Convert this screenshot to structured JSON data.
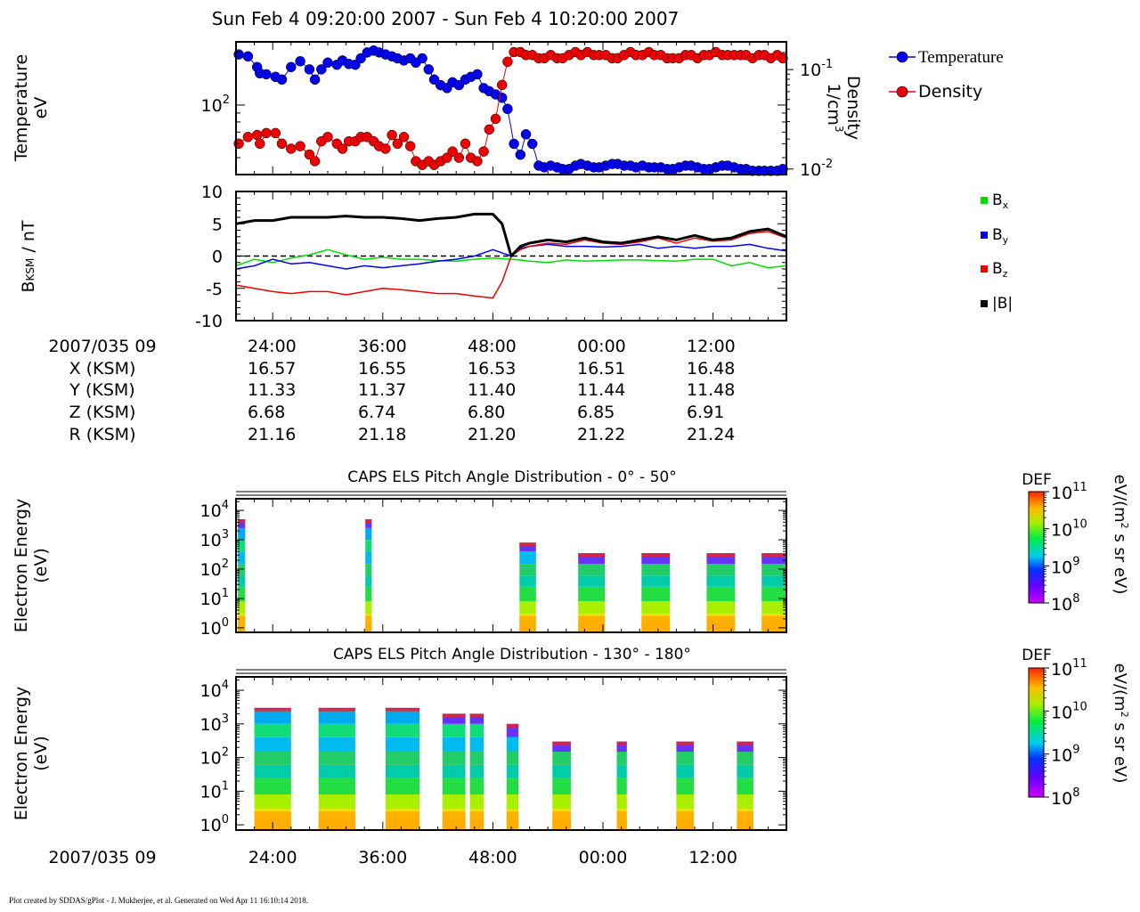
{
  "page": {
    "title": "Sun Feb 4 09:20:00 2007 - Sun Feb 4 10:20:00 2007",
    "footer": "Plot created by SDDAS/gPlot - J. Mukherjee, et al.  Generated on Wed Apr 11 16:10:14 2018."
  },
  "ephemeris": {
    "labels": [
      "2007/035 09",
      "X (KSM)",
      "Y (KSM)",
      "Z (KSM)",
      "R (KSM)"
    ],
    "columns": [
      {
        "time": "24:00",
        "x": "16.57",
        "y": "11.33",
        "z": "6.68",
        "r": "21.16"
      },
      {
        "time": "36:00",
        "x": "16.55",
        "y": "11.37",
        "z": "6.74",
        "r": "21.18"
      },
      {
        "time": "48:00",
        "x": "16.53",
        "y": "11.40",
        "z": "6.80",
        "r": "21.20"
      },
      {
        "time": "00:00",
        "x": "16.51",
        "y": "11.44",
        "z": "6.85",
        "r": "21.22"
      },
      {
        "time": "12:00",
        "x": "16.48",
        "y": "11.48",
        "z": "6.91",
        "r": "21.24"
      }
    ]
  },
  "bottom_axis": {
    "label": "2007/035 09",
    "ticks": [
      "24:00",
      "36:00",
      "48:00",
      "00:00",
      "12:00"
    ]
  },
  "colors": {
    "temperature": "#0000ee",
    "density": "#ee0000",
    "bx": "#00dd00",
    "by": "#0000ee",
    "bz": "#ee0000",
    "btot": "#000000"
  },
  "chart_data": [
    {
      "type": "scatter",
      "panel": "plasma-moments",
      "x_unit": "minutes after 09:00",
      "xlim": [
        20,
        80
      ],
      "ylabel": "Temperature\neV",
      "y2label": "Density\n1/cm3",
      "y_ticks": [
        "10^2"
      ],
      "y2_ticks": [
        "10^-1",
        "10^-2"
      ],
      "y_scale": "log",
      "ylim": [
        40,
        230
      ],
      "y2lim": [
        0.0088,
        0.19
      ],
      "legend_position": "top-right",
      "series": [
        {
          "name": "Temperature",
          "x": [
            20.3,
            21.3,
            22.3,
            22.6,
            23.3,
            24.3,
            25,
            26,
            27,
            28,
            28.6,
            29.3,
            30,
            31,
            31.6,
            32.3,
            33,
            33.6,
            34.3,
            35,
            35.6,
            36.3,
            37,
            37.6,
            38.3,
            39,
            39.6,
            40.3,
            41,
            41.6,
            42.3,
            43,
            43.6,
            44.3,
            45,
            45.6,
            46.3,
            47,
            47.6,
            48.3,
            49,
            49.6,
            50.3,
            51,
            51.6,
            52.3,
            53,
            53.6,
            54.3,
            55,
            55.6,
            56.3,
            57,
            57.6,
            58.3,
            59,
            59.6,
            60.3,
            61,
            61.6,
            62.3,
            63,
            63.6,
            64.3,
            65,
            65.6,
            66.3,
            67,
            67.6,
            68.3,
            69,
            69.6,
            70.3,
            71,
            71.6,
            72.3,
            73,
            73.6,
            74.3,
            75,
            75.6,
            76.3,
            77,
            77.6,
            78.3,
            79,
            79.6
          ],
          "y": [
            195,
            190,
            165,
            152,
            150,
            145,
            140,
            165,
            178,
            160,
            140,
            160,
            175,
            170,
            180,
            172,
            170,
            185,
            200,
            205,
            200,
            195,
            190,
            185,
            180,
            185,
            175,
            185,
            160,
            140,
            130,
            125,
            135,
            130,
            140,
            145,
            150,
            125,
            120,
            115,
            110,
            95,
            60,
            52,
            68,
            60,
            45,
            44,
            45,
            44,
            43,
            43,
            45,
            46,
            45,
            44,
            44,
            45,
            46,
            46,
            45,
            45,
            44,
            45,
            44,
            44,
            44,
            43,
            43,
            44,
            45,
            45,
            44,
            43,
            43,
            44,
            45,
            45,
            44,
            43,
            43,
            42,
            42,
            42,
            42,
            42,
            43
          ]
        },
        {
          "name": "Density",
          "x": [
            20.3,
            21.3,
            22.3,
            22.6,
            23.3,
            24.3,
            25,
            26,
            27,
            28,
            28.6,
            29.3,
            30,
            31,
            31.6,
            32.3,
            33,
            33.6,
            34.3,
            35,
            35.6,
            36.3,
            37,
            37.6,
            38.3,
            39,
            39.6,
            40.3,
            41,
            41.6,
            42.3,
            43,
            43.6,
            44.3,
            45,
            45.6,
            46.3,
            47,
            47.6,
            48.3,
            49,
            49.6,
            50.3,
            51,
            51.6,
            52.3,
            53,
            53.6,
            54.3,
            55,
            55.6,
            56.3,
            57,
            57.6,
            58.3,
            59,
            59.6,
            60.3,
            61,
            61.6,
            62.3,
            63,
            63.6,
            64.3,
            65,
            65.6,
            66.3,
            67,
            67.6,
            68.3,
            69,
            69.6,
            70.3,
            71,
            71.6,
            72.3,
            73,
            73.6,
            74.3,
            75,
            75.6,
            76.3,
            77,
            77.6,
            78.3,
            79,
            79.6
          ],
          "y": [
            0.018,
            0.021,
            0.022,
            0.018,
            0.023,
            0.023,
            0.018,
            0.016,
            0.017,
            0.014,
            0.012,
            0.019,
            0.021,
            0.018,
            0.016,
            0.019,
            0.019,
            0.021,
            0.021,
            0.019,
            0.017,
            0.016,
            0.022,
            0.018,
            0.021,
            0.017,
            0.012,
            0.011,
            0.012,
            0.011,
            0.012,
            0.013,
            0.015,
            0.013,
            0.018,
            0.013,
            0.012,
            0.015,
            0.025,
            0.032,
            0.07,
            0.12,
            0.15,
            0.15,
            0.14,
            0.14,
            0.13,
            0.13,
            0.14,
            0.13,
            0.13,
            0.14,
            0.15,
            0.14,
            0.15,
            0.14,
            0.14,
            0.14,
            0.13,
            0.13,
            0.14,
            0.15,
            0.14,
            0.14,
            0.15,
            0.14,
            0.14,
            0.13,
            0.13,
            0.13,
            0.14,
            0.14,
            0.13,
            0.14,
            0.14,
            0.15,
            0.14,
            0.14,
            0.14,
            0.14,
            0.14,
            0.13,
            0.14,
            0.14,
            0.13,
            0.14,
            0.13
          ]
        }
      ]
    },
    {
      "type": "line",
      "panel": "magnetic-field",
      "x_unit": "minutes after 09:00",
      "xlim": [
        20,
        80
      ],
      "ylabel": "BKSM / nT",
      "ylim": [
        -10,
        10
      ],
      "y_ticks": [
        10,
        5,
        0,
        -5,
        -10
      ],
      "zero_line": true,
      "legend_position": "right",
      "series": [
        {
          "name": "Bx",
          "x": [
            20,
            22,
            24,
            26,
            28,
            30,
            32,
            34,
            36,
            38,
            40,
            42,
            44,
            46,
            48,
            49,
            50,
            51,
            52,
            54,
            56,
            58,
            60,
            62,
            64,
            66,
            68,
            70,
            72,
            74,
            76,
            78,
            80
          ],
          "y": [
            -1.5,
            -0.5,
            -1,
            -0.3,
            0.2,
            1,
            0.2,
            -0.5,
            -0.2,
            -0.5,
            -0.5,
            -0.7,
            -0.8,
            -0.5,
            -0.3,
            -0.4,
            -0.5,
            -0.6,
            -0.8,
            -1,
            -0.6,
            -0.8,
            -0.7,
            -0.6,
            -0.6,
            -0.7,
            -0.8,
            -0.5,
            -0.5,
            -1.5,
            -1,
            -1.8,
            -1.5
          ]
        },
        {
          "name": "By",
          "x": [
            20,
            22,
            24,
            26,
            28,
            30,
            32,
            34,
            36,
            38,
            40,
            42,
            44,
            46,
            48,
            49,
            50,
            51,
            52,
            54,
            56,
            58,
            60,
            62,
            64,
            66,
            68,
            70,
            72,
            74,
            76,
            78,
            80
          ],
          "y": [
            -2,
            -1.5,
            -0.5,
            -1.2,
            -1,
            -1.5,
            -2,
            -1.5,
            -1.8,
            -1.5,
            -1.2,
            -0.8,
            -0.5,
            0,
            1,
            0.5,
            0,
            1.2,
            1.5,
            1.8,
            1.5,
            1.5,
            1.4,
            1.5,
            1.8,
            1.2,
            1.5,
            1.2,
            1.5,
            1.5,
            1.8,
            1.2,
            0.8
          ]
        },
        {
          "name": "Bz",
          "x": [
            20,
            22,
            24,
            26,
            28,
            30,
            32,
            34,
            36,
            38,
            40,
            42,
            44,
            46,
            48,
            49,
            50,
            51,
            52,
            54,
            56,
            58,
            60,
            62,
            64,
            66,
            68,
            70,
            72,
            74,
            76,
            78,
            80
          ],
          "y": [
            -4.5,
            -5,
            -5.5,
            -5.8,
            -5.5,
            -5.5,
            -6,
            -5.5,
            -5,
            -5.2,
            -5.5,
            -5.8,
            -5.8,
            -6.2,
            -6.5,
            -4,
            0,
            1,
            1.5,
            2,
            1.8,
            2.5,
            2,
            1.8,
            2.2,
            2.8,
            2,
            2.8,
            2.3,
            2.5,
            3.5,
            3.8,
            2.8
          ]
        },
        {
          "name": "|B|",
          "x": [
            20,
            22,
            24,
            26,
            28,
            30,
            32,
            34,
            36,
            38,
            40,
            42,
            44,
            46,
            48,
            49,
            50,
            51,
            52,
            54,
            56,
            58,
            60,
            62,
            64,
            66,
            68,
            70,
            72,
            74,
            76,
            78,
            80
          ],
          "y": [
            5,
            5.5,
            5.5,
            6,
            6,
            6,
            6.2,
            6,
            6,
            5.8,
            5.5,
            5.8,
            6,
            6.5,
            6.5,
            5,
            0,
            1.5,
            2,
            2.5,
            2.2,
            2.8,
            2.2,
            2,
            2.5,
            3,
            2.5,
            3.2,
            2.5,
            2.8,
            3.8,
            4.2,
            3
          ]
        }
      ]
    },
    {
      "type": "heatmap",
      "panel": "els-pad-0-50",
      "title": "CAPS ELS Pitch Angle Distribution - 0° - 50°",
      "ylabel": "Electron Energy\n(eV)",
      "y_ticks": [
        "10^4",
        "10^3",
        "10^2",
        "10^1",
        "10^0"
      ],
      "y_scale": "log",
      "ylim": [
        0.7,
        25000
      ],
      "xlim": [
        20,
        80
      ],
      "colorbar": {
        "label": "DEF",
        "unit": "eV/(m2 s sr eV)",
        "ticks": [
          "10^11",
          "10^10",
          "10^9",
          "10^8"
        ],
        "range": [
          100000000.0,
          100000000000.0
        ]
      },
      "blocks": [
        {
          "x0": 20.2,
          "x1": 21,
          "emax": 5000
        },
        {
          "x0": 34.1,
          "x1": 34.8,
          "emax": 5000
        },
        {
          "x0": 50.9,
          "x1": 52.7,
          "emax": 800
        },
        {
          "x0": 57.3,
          "x1": 60.2,
          "emax": 350
        },
        {
          "x0": 64.2,
          "x1": 67.3,
          "emax": 350
        },
        {
          "x0": 71.3,
          "x1": 74.4,
          "emax": 350
        },
        {
          "x0": 77.3,
          "x1": 80,
          "emax": 350
        }
      ]
    },
    {
      "type": "heatmap",
      "panel": "els-pad-130-180",
      "title": "CAPS ELS Pitch Angle Distribution - 130° - 180°",
      "ylabel": "Electron Energy\n(eV)",
      "y_ticks": [
        "10^4",
        "10^3",
        "10^2",
        "10^1",
        "10^0"
      ],
      "y_scale": "log",
      "ylim": [
        0.7,
        25000
      ],
      "xlim": [
        20,
        80
      ],
      "colorbar": {
        "label": "DEF",
        "unit": "eV/(m2 s sr eV)",
        "ticks": [
          "10^11",
          "10^10",
          "10^9",
          "10^8"
        ],
        "range": [
          100000000.0,
          100000000000.0
        ]
      },
      "blocks": [
        {
          "x0": 22,
          "x1": 26,
          "emax": 3000
        },
        {
          "x0": 29,
          "x1": 33,
          "emax": 3000
        },
        {
          "x0": 36.3,
          "x1": 40,
          "emax": 3000
        },
        {
          "x0": 42.5,
          "x1": 45,
          "emax": 2000
        },
        {
          "x0": 45.5,
          "x1": 47,
          "emax": 2000
        },
        {
          "x0": 49.5,
          "x1": 50.8,
          "emax": 1000
        },
        {
          "x0": 54.5,
          "x1": 56.5,
          "emax": 300
        },
        {
          "x0": 61.5,
          "x1": 62.6,
          "emax": 300
        },
        {
          "x0": 68,
          "x1": 69.9,
          "emax": 300
        },
        {
          "x0": 74.6,
          "x1": 76.4,
          "emax": 300
        }
      ]
    }
  ]
}
